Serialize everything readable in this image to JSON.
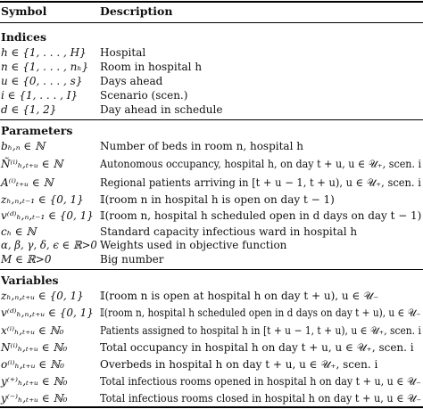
{
  "header": {
    "symbol": "Symbol",
    "description": "Description"
  },
  "sections": [
    {
      "title": "Indices",
      "rows": [
        {
          "symbol": "h ∈ {1, . . . , H}",
          "description": "Hospital"
        },
        {
          "symbol": "n ∈ {1, . . . , nₕ}",
          "description": "Room in hospital h"
        },
        {
          "symbol": "u ∈ {0, . . . , s}",
          "description": "Days ahead"
        },
        {
          "symbol": "i ∈ {1, . . . , I}",
          "description": "Scenario (scen.)"
        },
        {
          "symbol": "d ∈ {1, 2}",
          "description": "Day ahead in schedule"
        }
      ]
    },
    {
      "title": "Parameters",
      "rows": [
        {
          "symbol": "bₕ,ₙ ∈ ℕ",
          "description": "Number of beds in room n, hospital h"
        },
        {
          "symbol": "Ñ⁽ⁱ⁾ₕ,ₜ₊ᵤ ∈ ℕ",
          "description": "Autonomous occupancy, hospital h, on day t + u, u ∈ 𝒰₊, scen. i"
        },
        {
          "symbol": "A⁽ⁱ⁾ₜ₊ᵤ ∈ ℕ",
          "description": "Regional patients arriving in [t + u − 1, t + u), u ∈ 𝒰₊, scen. i"
        },
        {
          "symbol": "zₕ,ₙ,ₜ₋₁ ∈ {0, 1}",
          "description": "𝕀(room n in hospital h is open on day t − 1)"
        },
        {
          "symbol": "v⁽ᵈ⁾ₕ,ₙ,ₜ₋₁ ∈ {0, 1}",
          "description": "𝕀(room n, hospital h scheduled open in d days on day t − 1)"
        },
        {
          "symbol": "cₕ ∈ ℕ",
          "description": "Standard capacity infectious ward in hospital h"
        },
        {
          "symbol": "α, β, γ, δ, ϵ ∈ ℝ>0",
          "description": "Weights used in objective function"
        },
        {
          "symbol": "M ∈ ℝ>0",
          "description": "Big number"
        }
      ]
    },
    {
      "title": "Variables",
      "rows": [
        {
          "symbol": "zₕ,ₙ,ₜ₊ᵤ ∈ {0, 1}",
          "description": "𝕀(room n is open at hospital h on day t + u), u ∈ 𝒰₋"
        },
        {
          "symbol": "v⁽ᵈ⁾ₕ,ₙ,ₜ₊ᵤ ∈ {0, 1}",
          "description": "𝕀(room n, hospital h scheduled open in d days on day t + u), u ∈ 𝒰₋"
        },
        {
          "symbol": "x⁽ⁱ⁾ₕ,ₜ₊ᵤ ∈ ℕ₀",
          "description": "Patients assigned to hospital h in [t + u − 1, t + u), u ∈ 𝒰₊, scen. i"
        },
        {
          "symbol": "N⁽ⁱ⁾ₕ,ₜ₊ᵤ ∈ ℕ₀",
          "description": "Total occupancy in hospital h on day t + u, u ∈ 𝒰₊, scen. i"
        },
        {
          "symbol": "o⁽ⁱ⁾ₕ,ₜ₊ᵤ ∈ ℕ₀",
          "description": "Overbeds in hospital h on day t + u, u ∈ 𝒰₊, scen. i"
        },
        {
          "symbol": "y⁽⁺⁾ₕ,ₜ₊ᵤ ∈ ℕ₀",
          "description": "Total infectious rooms opened in hospital h on day t + u, u ∈ 𝒰₋"
        },
        {
          "symbol": "y⁽⁻⁾ₕ,ₜ₊ᵤ ∈ ℕ₀",
          "description": "Total infectious rooms closed in hospital h on day t + u, u ∈ 𝒰₋"
        }
      ]
    }
  ]
}
